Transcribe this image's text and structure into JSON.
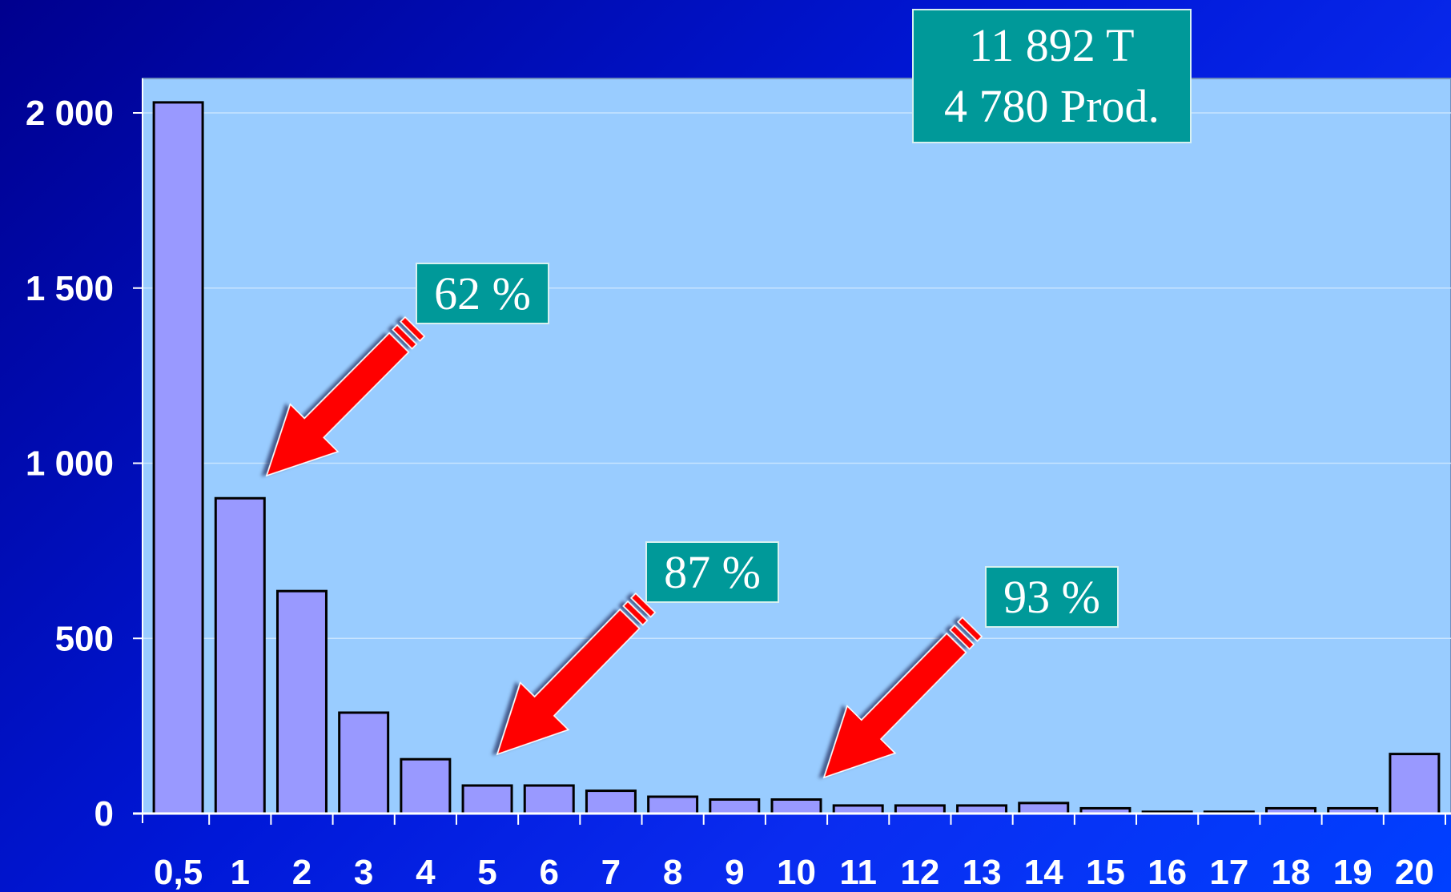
{
  "chart_data": {
    "type": "bar",
    "title": "",
    "xlabel": "",
    "ylabel": "",
    "categories": [
      "0,5",
      "1",
      "2",
      "3",
      "4",
      "5",
      "6",
      "7",
      "8",
      "9",
      "10",
      "11",
      "12",
      "13",
      "14",
      "15",
      "16",
      "17",
      "18",
      "19",
      "20"
    ],
    "values": [
      2030,
      900,
      635,
      288,
      155,
      80,
      80,
      65,
      48,
      40,
      40,
      23,
      23,
      23,
      30,
      15,
      5,
      5,
      15,
      15,
      170
    ],
    "ylim": [
      0,
      2100
    ],
    "yticks": [
      {
        "value": 0,
        "label": "0"
      },
      {
        "value": 500,
        "label": "500"
      },
      {
        "value": 1000,
        "label": "1 000"
      },
      {
        "value": 1500,
        "label": "1 500"
      },
      {
        "value": 2000,
        "label": "2 000"
      }
    ],
    "grid": true,
    "annotations": {
      "summary": [
        "11 892 T",
        "4 780 Prod."
      ],
      "callouts": [
        {
          "label": "62 %",
          "category_index": 1
        },
        {
          "label": "87 %",
          "category_index": 5
        },
        {
          "label": "93 %",
          "category_index": 10
        }
      ]
    }
  },
  "colors": {
    "plot_background": "#99ccff",
    "bar_fill": "#9999ff",
    "bar_stroke": "#000000",
    "callout_fill": "#009999",
    "arrow": "#ff0000",
    "text": "#ffffff"
  }
}
